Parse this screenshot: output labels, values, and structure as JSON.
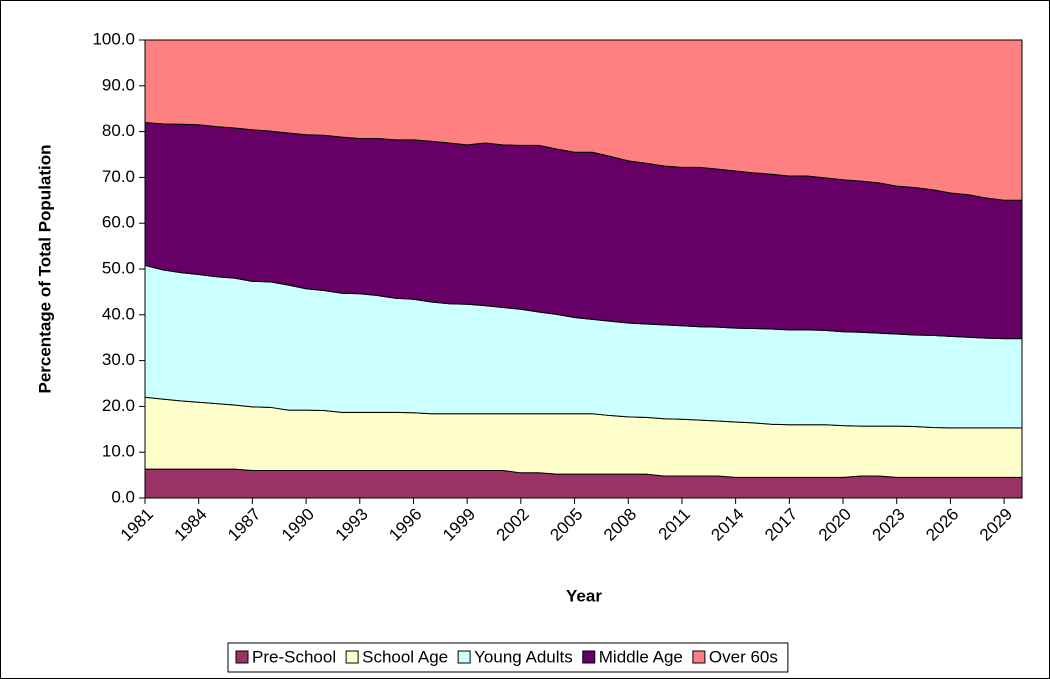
{
  "chart_data": {
    "type": "stacked-area",
    "x_label": "Year",
    "y_label": "Percentage of Total Population",
    "x": [
      1981,
      1982,
      1983,
      1984,
      1985,
      1986,
      1987,
      1988,
      1989,
      1990,
      1991,
      1992,
      1993,
      1994,
      1995,
      1996,
      1997,
      1998,
      1999,
      2000,
      2001,
      2002,
      2003,
      2004,
      2005,
      2006,
      2007,
      2008,
      2009,
      2010,
      2011,
      2012,
      2013,
      2014,
      2015,
      2016,
      2017,
      2018,
      2019,
      2020,
      2021,
      2022,
      2023,
      2024,
      2025,
      2026,
      2027,
      2028,
      2029,
      2030
    ],
    "xlim": [
      1981,
      2030
    ],
    "xticks": [
      1981,
      1984,
      1987,
      1990,
      1993,
      1996,
      1999,
      2002,
      2005,
      2008,
      2011,
      2014,
      2017,
      2020,
      2023,
      2026,
      2029
    ],
    "ylim": [
      0,
      100
    ],
    "yticks": [
      {
        "value": 0,
        "label": "0.0"
      },
      {
        "value": 10,
        "label": "10.0"
      },
      {
        "value": 20,
        "label": "20.0"
      },
      {
        "value": 30,
        "label": "30.0"
      },
      {
        "value": 40,
        "label": "40.0"
      },
      {
        "value": 50,
        "label": "50.0"
      },
      {
        "value": 60,
        "label": "60.0"
      },
      {
        "value": 70,
        "label": "70.0"
      },
      {
        "value": 80,
        "label": "80.0"
      },
      {
        "value": 90,
        "label": "90.0"
      },
      {
        "value": 100,
        "label": "100.0"
      }
    ],
    "legend": "bottom",
    "series": [
      {
        "name": "Pre-School",
        "color": "#993366",
        "values": [
          6.3,
          6.3,
          6.3,
          6.3,
          6.3,
          6.3,
          6.0,
          6.0,
          6.0,
          6.0,
          6.0,
          6.0,
          6.0,
          6.0,
          6.0,
          6.0,
          6.0,
          6.0,
          6.0,
          6.0,
          6.0,
          5.5,
          5.5,
          5.2,
          5.2,
          5.2,
          5.2,
          5.2,
          5.2,
          4.8,
          4.8,
          4.8,
          4.8,
          4.5,
          4.5,
          4.5,
          4.5,
          4.5,
          4.5,
          4.5,
          4.8,
          4.8,
          4.5,
          4.5,
          4.5,
          4.5,
          4.5,
          4.5,
          4.5,
          4.5
        ]
      },
      {
        "name": "School Age",
        "color": "#FFFFCC",
        "values": [
          15.7,
          15.3,
          14.9,
          14.6,
          14.3,
          14.0,
          13.9,
          13.8,
          13.2,
          13.2,
          13.1,
          12.7,
          12.7,
          12.7,
          12.7,
          12.6,
          12.4,
          12.4,
          12.4,
          12.4,
          12.4,
          12.9,
          12.9,
          13.2,
          13.2,
          13.2,
          12.8,
          12.5,
          12.4,
          12.5,
          12.4,
          12.2,
          12.0,
          12.1,
          11.9,
          11.6,
          11.5,
          11.5,
          11.5,
          11.3,
          10.9,
          10.9,
          11.2,
          11.1,
          10.9,
          10.8,
          10.8,
          10.8,
          10.8,
          10.8
        ]
      },
      {
        "name": "Young Adults",
        "color": "#CCFFFF",
        "values": [
          28.8,
          28.2,
          28.0,
          27.9,
          27.7,
          27.7,
          27.4,
          27.4,
          27.3,
          26.5,
          26.2,
          26.0,
          25.9,
          25.5,
          24.9,
          24.8,
          24.4,
          24.0,
          23.9,
          23.6,
          23.2,
          22.8,
          22.2,
          21.7,
          21.0,
          20.6,
          20.6,
          20.5,
          20.4,
          20.5,
          20.4,
          20.4,
          20.5,
          20.5,
          20.6,
          20.8,
          20.7,
          20.7,
          20.6,
          20.5,
          20.5,
          20.3,
          20.1,
          20.0,
          20.1,
          20.0,
          19.8,
          19.6,
          19.5,
          19.5
        ]
      },
      {
        "name": "Middle Age",
        "color": "#660066",
        "values": [
          31.2,
          31.9,
          32.4,
          32.7,
          32.8,
          32.8,
          33.1,
          32.9,
          33.2,
          33.6,
          33.9,
          34.1,
          33.9,
          34.3,
          34.6,
          34.8,
          35.1,
          35.1,
          34.8,
          35.5,
          35.5,
          35.8,
          36.4,
          36.1,
          36.1,
          36.5,
          36.0,
          35.4,
          35.1,
          34.7,
          34.6,
          34.8,
          34.5,
          34.3,
          34.0,
          33.8,
          33.6,
          33.6,
          33.3,
          33.2,
          33.0,
          32.8,
          32.3,
          32.2,
          31.8,
          31.3,
          31.1,
          30.6,
          30.2,
          30.2
        ]
      },
      {
        "name": "Over 60s",
        "color": "#FF8080",
        "values": [
          18.0,
          18.3,
          18.4,
          18.5,
          18.9,
          19.2,
          19.6,
          19.9,
          20.3,
          20.7,
          20.8,
          21.2,
          21.5,
          21.5,
          21.8,
          21.8,
          22.1,
          22.5,
          22.9,
          22.5,
          22.9,
          23.0,
          23.0,
          23.8,
          24.5,
          24.5,
          25.4,
          26.4,
          26.9,
          27.5,
          27.8,
          27.8,
          28.2,
          28.6,
          29.0,
          29.3,
          29.7,
          29.7,
          30.1,
          30.5,
          30.8,
          31.2,
          31.9,
          32.2,
          32.7,
          33.4,
          33.8,
          34.5,
          35.0,
          35.0
        ]
      }
    ]
  }
}
